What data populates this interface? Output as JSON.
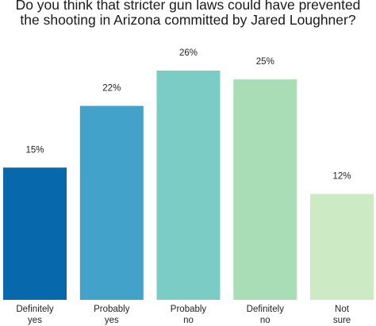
{
  "chart_data": {
    "type": "bar",
    "title_lines": [
      "Do you think that stricter gun laws could have prevented",
      "the shooting in Arizona committed by Jared Loughner?"
    ],
    "categories": [
      [
        "Definitely",
        "yes"
      ],
      [
        "Probably",
        "yes"
      ],
      [
        "Probably",
        "no"
      ],
      [
        "Definitely",
        "no"
      ],
      [
        "Not",
        "sure"
      ]
    ],
    "values": [
      15,
      22,
      26,
      25,
      12
    ],
    "value_labels": [
      "15%",
      "22%",
      "26%",
      "25%",
      "12%"
    ],
    "colors": [
      "#0868ac",
      "#43a2ca",
      "#7bccc4",
      "#a8ddb5",
      "#ccebc5"
    ],
    "ylim": [
      0,
      26
    ],
    "xlabel": "",
    "ylabel": "",
    "grid": false,
    "legend": "none"
  }
}
